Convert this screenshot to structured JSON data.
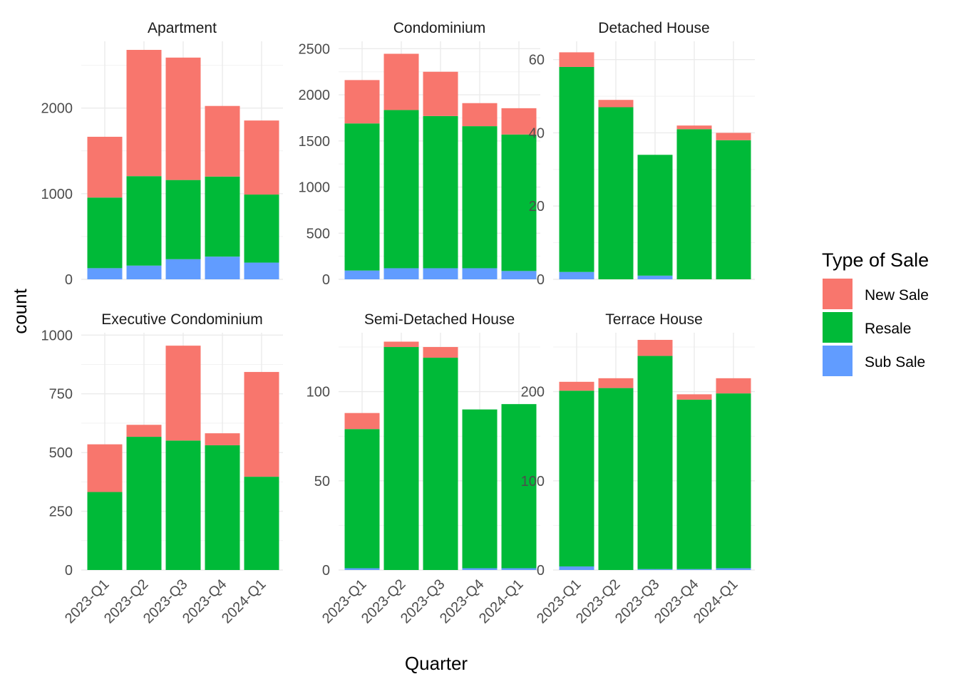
{
  "chart_data": {
    "type": "bar",
    "stacked": true,
    "facet_by": "Property Type",
    "xlabel": "Quarter",
    "ylabel": "count",
    "legend": {
      "title": "Type of Sale",
      "position": "right",
      "entries": [
        "New Sale",
        "Resale",
        "Sub Sale"
      ]
    },
    "colors": {
      "New Sale": "#F8766D",
      "Resale": "#00BA38",
      "Sub Sale": "#619CFF"
    },
    "grid": true,
    "categories": [
      "2023-Q1",
      "2023-Q2",
      "2023-Q3",
      "2023-Q4",
      "2024-Q1"
    ],
    "panels": [
      {
        "title": "Apartment",
        "ylim": [
          0,
          2780
        ],
        "yticks": [
          0,
          1000,
          2000
        ],
        "series": [
          {
            "name": "Sub Sale",
            "values": [
              130,
              160,
              235,
              265,
              195
            ]
          },
          {
            "name": "Resale",
            "values": [
              825,
              1045,
              925,
              935,
              795
            ]
          },
          {
            "name": "New Sale",
            "values": [
              710,
              1475,
              1430,
              825,
              865
            ]
          }
        ]
      },
      {
        "title": "Condominium",
        "ylim": [
          0,
          2580
        ],
        "yticks": [
          0,
          500,
          1000,
          1500,
          2000,
          2500
        ],
        "series": [
          {
            "name": "Sub Sale",
            "values": [
              95,
              120,
              120,
              120,
              90
            ]
          },
          {
            "name": "Resale",
            "values": [
              1595,
              1715,
              1650,
              1540,
              1480
            ]
          },
          {
            "name": "New Sale",
            "values": [
              470,
              610,
              480,
              250,
              285
            ]
          }
        ]
      },
      {
        "title": "Detached House",
        "ylim": [
          0,
          65
        ],
        "yticks": [
          0,
          20,
          40,
          60
        ],
        "series": [
          {
            "name": "Sub Sale",
            "values": [
              2,
              0,
              1,
              0,
              0
            ]
          },
          {
            "name": "Resale",
            "values": [
              56,
              47,
              33,
              41,
              38
            ]
          },
          {
            "name": "New Sale",
            "values": [
              4,
              2,
              0,
              1,
              2
            ]
          }
        ]
      },
      {
        "title": "Executive Condominium",
        "ylim": [
          0,
          1010
        ],
        "yticks": [
          0,
          250,
          500,
          750,
          1000
        ],
        "series": [
          {
            "name": "Sub Sale",
            "values": [
              0,
              0,
              0,
              0,
              0
            ]
          },
          {
            "name": "Resale",
            "values": [
              332,
              567,
              551,
              531,
              397
            ]
          },
          {
            "name": "New Sale",
            "values": [
              203,
              51,
              404,
              51,
              446
            ]
          }
        ]
      },
      {
        "title": "Semi-Detached House",
        "ylim": [
          0,
          133
        ],
        "yticks": [
          0,
          50,
          100
        ],
        "series": [
          {
            "name": "Sub Sale",
            "values": [
              1,
              0,
              0,
              1,
              1
            ]
          },
          {
            "name": "Resale",
            "values": [
              78,
              125,
              119,
              89,
              92
            ]
          },
          {
            "name": "New Sale",
            "values": [
              9,
              3,
              6,
              0,
              0
            ]
          }
        ]
      },
      {
        "title": "Terrace House",
        "ylim": [
          0,
          266
        ],
        "yticks": [
          0,
          100,
          200
        ],
        "series": [
          {
            "name": "Sub Sale",
            "values": [
              4,
              0,
              1,
              1,
              2
            ]
          },
          {
            "name": "Resale",
            "values": [
              197,
              204,
              239,
              190,
              196
            ]
          },
          {
            "name": "New Sale",
            "values": [
              10,
              11,
              18,
              6,
              17
            ]
          }
        ]
      }
    ]
  }
}
